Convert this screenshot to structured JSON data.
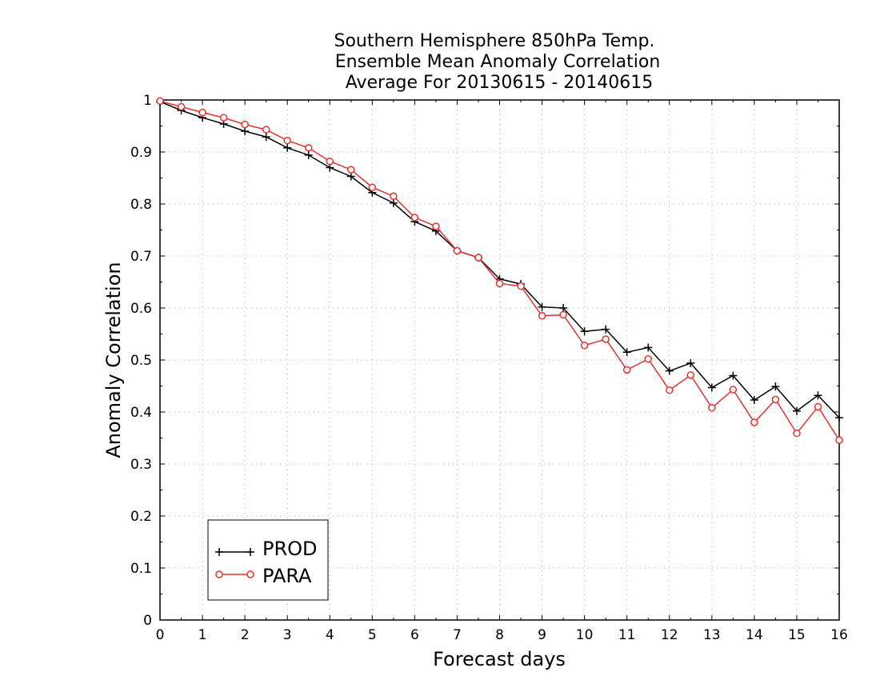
{
  "chart_data": {
    "type": "line",
    "title_lines": [
      "Southern Hemisphere 850hPa Temp.",
      "Ensemble Mean Anomaly Correlation",
      "Average For 20130615 - 20140615"
    ],
    "xlabel": "Forecast days",
    "ylabel": "Anomaly Correlation",
    "xlim": [
      0,
      16
    ],
    "ylim": [
      0,
      1
    ],
    "x_ticks": [
      0,
      1,
      2,
      3,
      4,
      5,
      6,
      7,
      8,
      9,
      10,
      11,
      12,
      13,
      14,
      15,
      16
    ],
    "x_tick_labels": [
      "0",
      "1",
      "2",
      "3",
      "4",
      "5",
      "6",
      "7",
      "8",
      "9",
      "10",
      "11",
      "12",
      "13",
      "14",
      "15",
      "16"
    ],
    "y_ticks": [
      0,
      0.1,
      0.2,
      0.3,
      0.4,
      0.5,
      0.6,
      0.7,
      0.8,
      0.9,
      1
    ],
    "y_tick_labels": [
      "0",
      "0.1",
      "0.2",
      "0.3",
      "0.4",
      "0.5",
      "0.6",
      "0.7",
      "0.8",
      "0.9",
      "1"
    ],
    "grid": true,
    "legend_position": "bottom-left",
    "x": [
      0,
      0.5,
      1,
      1.5,
      2,
      2.5,
      3,
      3.5,
      4,
      4.5,
      5,
      5.5,
      6,
      6.5,
      7,
      7.5,
      8,
      8.5,
      9,
      9.5,
      10,
      10.5,
      11,
      11.5,
      12,
      12.5,
      13,
      13.5,
      14,
      14.5,
      15,
      15.5,
      16
    ],
    "series": [
      {
        "name": "PROD",
        "color": "#000000",
        "marker": "plus",
        "values": [
          0.997,
          0.98,
          0.966,
          0.954,
          0.94,
          0.929,
          0.908,
          0.894,
          0.87,
          0.853,
          0.822,
          0.802,
          0.766,
          0.748,
          0.71,
          0.697,
          0.656,
          0.646,
          0.602,
          0.6,
          0.555,
          0.559,
          0.515,
          0.524,
          0.479,
          0.494,
          0.447,
          0.47,
          0.423,
          0.449,
          0.402,
          0.432,
          0.389
        ]
      },
      {
        "name": "PARA",
        "color": "#e83030",
        "marker": "circle",
        "values": [
          0.998,
          0.987,
          0.976,
          0.966,
          0.953,
          0.943,
          0.922,
          0.908,
          0.882,
          0.866,
          0.832,
          0.815,
          0.774,
          0.757,
          0.71,
          0.697,
          0.647,
          0.642,
          0.585,
          0.587,
          0.528,
          0.54,
          0.481,
          0.502,
          0.442,
          0.471,
          0.408,
          0.443,
          0.38,
          0.424,
          0.359,
          0.41,
          0.346
        ]
      }
    ]
  }
}
